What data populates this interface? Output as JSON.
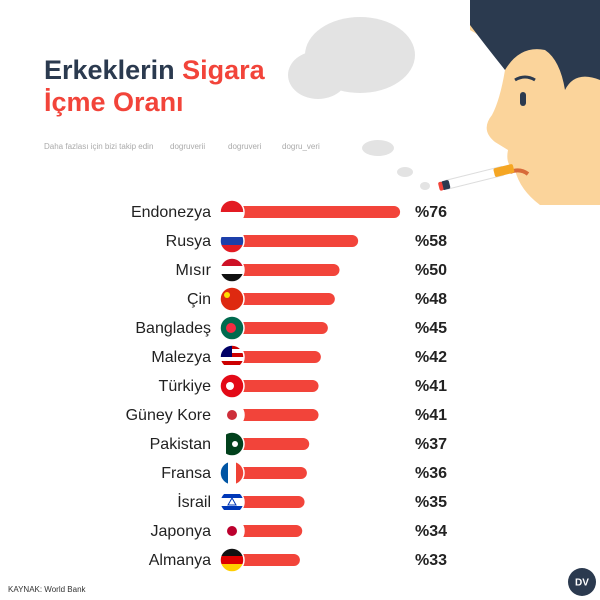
{
  "chart_data": {
    "type": "bar",
    "orientation": "horizontal",
    "title_parts": [
      "Erkeklerin",
      "Sigara",
      "İçme Oranı"
    ],
    "subtitle": "Daha fazlası için bizi takip edin",
    "social": [
      "dogruverii",
      "dogruveri",
      "dogru_veri"
    ],
    "source": "KAYNAK: World Bank",
    "logo": "DV",
    "categories": [
      "Endonezya",
      "Rusya",
      "Mısır",
      "Çin",
      "Bangladeş",
      "Malezya",
      "Türkiye",
      "Güney Kore",
      "Pakistan",
      "Fransa",
      "İsrail",
      "Japonya",
      "Almanya"
    ],
    "values": [
      76,
      58,
      50,
      48,
      45,
      42,
      41,
      41,
      37,
      36,
      35,
      34,
      33
    ],
    "value_labels": [
      "%76",
      "%58",
      "%50",
      "%48",
      "%45",
      "%42",
      "%41",
      "%41",
      "%37",
      "%36",
      "%35",
      "%34",
      "%33"
    ],
    "color": "#f2443a",
    "xlim": [
      0,
      100
    ]
  }
}
